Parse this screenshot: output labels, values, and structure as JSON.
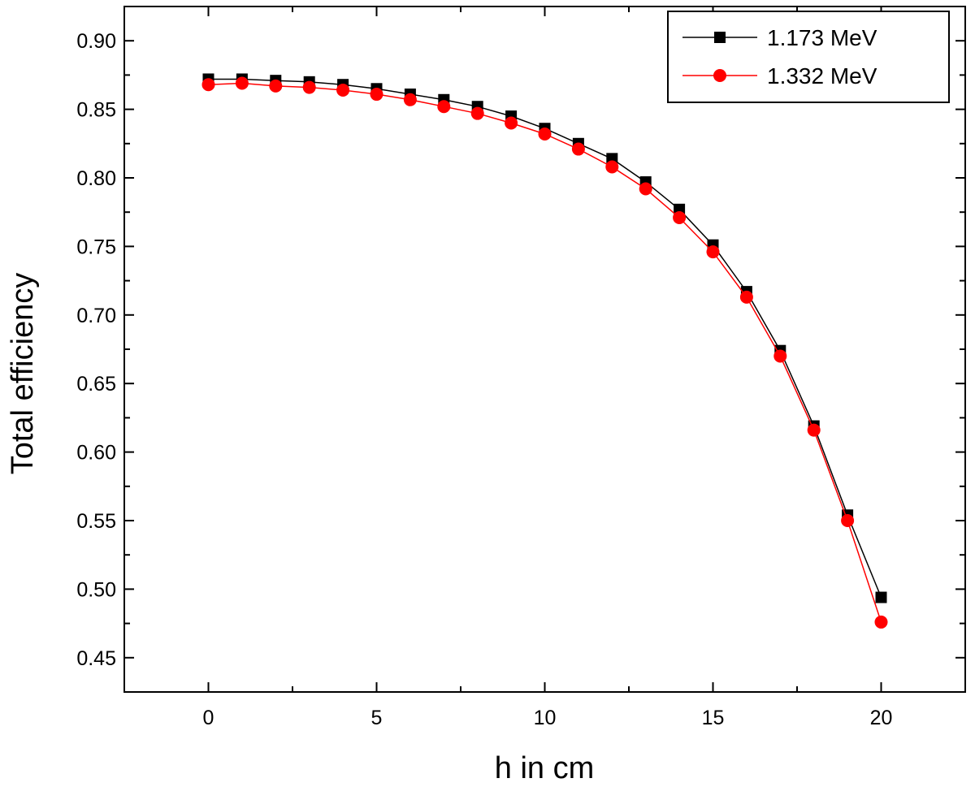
{
  "chart_data": {
    "type": "line",
    "xlabel": "h in cm",
    "ylabel": "Total efficiency",
    "xlim": [
      -2.5,
      22.5
    ],
    "ylim": [
      0.425,
      0.925
    ],
    "x_ticks": [
      0,
      5,
      10,
      15,
      20
    ],
    "y_ticks": [
      0.45,
      0.5,
      0.55,
      0.6,
      0.65,
      0.7,
      0.75,
      0.8,
      0.85,
      0.9
    ],
    "grid": false,
    "legend_position": "top-right",
    "x": [
      0,
      1,
      2,
      3,
      4,
      5,
      6,
      7,
      8,
      9,
      10,
      11,
      12,
      13,
      14,
      15,
      16,
      17,
      18,
      19,
      20
    ],
    "series": [
      {
        "name": "1.173 MeV",
        "color": "#000000",
        "marker": "square",
        "values": [
          0.872,
          0.872,
          0.871,
          0.87,
          0.868,
          0.865,
          0.861,
          0.857,
          0.852,
          0.845,
          0.836,
          0.825,
          0.814,
          0.797,
          0.777,
          0.751,
          0.717,
          0.674,
          0.619,
          0.554,
          0.494
        ]
      },
      {
        "name": "1.332 MeV",
        "color": "#ff0000",
        "marker": "circle",
        "values": [
          0.868,
          0.869,
          0.867,
          0.866,
          0.864,
          0.861,
          0.857,
          0.852,
          0.847,
          0.84,
          0.832,
          0.821,
          0.808,
          0.792,
          0.771,
          0.746,
          0.713,
          0.67,
          0.616,
          0.55,
          0.476
        ]
      }
    ]
  }
}
